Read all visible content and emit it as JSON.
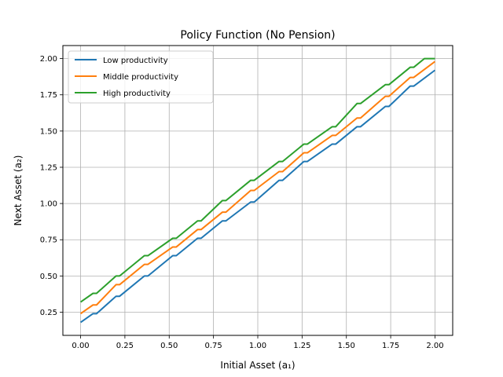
{
  "chart_data": {
    "type": "line",
    "title": "Policy Function (No Pension)",
    "xlabel": "Initial Asset (a₁)",
    "ylabel": "Next Asset (a₂)",
    "xlim": [
      -0.1,
      2.1
    ],
    "ylim": [
      0.09,
      2.09
    ],
    "x_ticks": [
      0.0,
      0.25,
      0.5,
      0.75,
      1.0,
      1.25,
      1.5,
      1.75,
      2.0
    ],
    "x_tick_labels": [
      "0.00",
      "0.25",
      "0.50",
      "0.75",
      "1.00",
      "1.25",
      "1.50",
      "1.75",
      "2.00"
    ],
    "y_ticks": [
      0.25,
      0.5,
      0.75,
      1.0,
      1.25,
      1.5,
      1.75,
      2.0
    ],
    "y_tick_labels": [
      "0.25",
      "0.50",
      "0.75",
      "1.00",
      "1.25",
      "1.50",
      "1.75",
      "2.00"
    ],
    "grid": true,
    "legend_position": "top-left",
    "series": [
      {
        "name": "Low productivity",
        "color": "#1f77b4",
        "x": [
          0.0,
          0.07,
          0.09,
          0.2,
          0.22,
          0.36,
          0.38,
          0.52,
          0.54,
          0.66,
          0.68,
          0.8,
          0.82,
          0.96,
          0.98,
          1.12,
          1.14,
          1.26,
          1.28,
          1.42,
          1.44,
          1.56,
          1.58,
          1.72,
          1.74,
          1.86,
          1.88,
          2.0
        ],
        "values": [
          0.18,
          0.24,
          0.24,
          0.36,
          0.36,
          0.5,
          0.5,
          0.64,
          0.64,
          0.76,
          0.76,
          0.88,
          0.88,
          1.01,
          1.01,
          1.16,
          1.16,
          1.29,
          1.29,
          1.41,
          1.41,
          1.53,
          1.53,
          1.67,
          1.67,
          1.81,
          1.81,
          1.92
        ]
      },
      {
        "name": "Middle productivity",
        "color": "#ff7f0e",
        "x": [
          0.0,
          0.07,
          0.09,
          0.2,
          0.22,
          0.36,
          0.38,
          0.52,
          0.54,
          0.66,
          0.68,
          0.8,
          0.82,
          0.96,
          0.98,
          1.12,
          1.14,
          1.26,
          1.28,
          1.42,
          1.44,
          1.56,
          1.58,
          1.72,
          1.74,
          1.86,
          1.88,
          2.0
        ],
        "values": [
          0.24,
          0.3,
          0.3,
          0.44,
          0.44,
          0.58,
          0.58,
          0.7,
          0.7,
          0.82,
          0.82,
          0.94,
          0.94,
          1.09,
          1.09,
          1.22,
          1.22,
          1.35,
          1.35,
          1.47,
          1.47,
          1.59,
          1.59,
          1.74,
          1.74,
          1.87,
          1.87,
          1.98
        ]
      },
      {
        "name": "High productivity",
        "color": "#2ca02c",
        "x": [
          0.0,
          0.07,
          0.09,
          0.2,
          0.22,
          0.36,
          0.38,
          0.52,
          0.54,
          0.66,
          0.68,
          0.8,
          0.82,
          0.96,
          0.98,
          1.12,
          1.14,
          1.26,
          1.28,
          1.42,
          1.44,
          1.56,
          1.58,
          1.72,
          1.74,
          1.86,
          1.88,
          1.94,
          2.0
        ],
        "values": [
          0.32,
          0.38,
          0.38,
          0.5,
          0.5,
          0.64,
          0.64,
          0.76,
          0.76,
          0.88,
          0.88,
          1.02,
          1.02,
          1.16,
          1.16,
          1.29,
          1.29,
          1.41,
          1.41,
          1.53,
          1.53,
          1.69,
          1.69,
          1.82,
          1.82,
          1.94,
          1.94,
          2.0,
          2.0
        ]
      }
    ]
  }
}
